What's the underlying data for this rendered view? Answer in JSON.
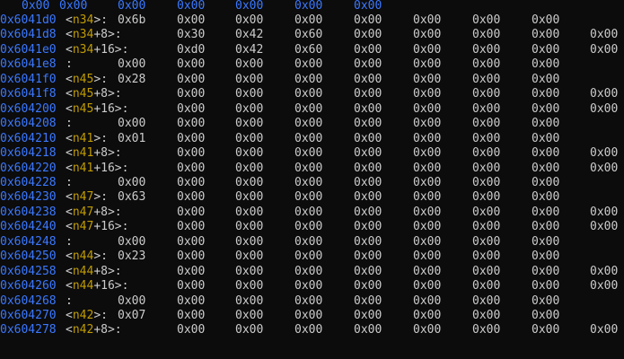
{
  "colors": {
    "background": "#0c0c0c",
    "address": "#3b78ff",
    "symbol": "#c19c00",
    "value": "#cccccc"
  },
  "header": [
    "0x00",
    "0x00",
    "0x00",
    "0x00",
    "0x00",
    "0x00",
    "0x00"
  ],
  "rows": [
    {
      "address": "0x6041d0",
      "symbol": "n34",
      "suffix": ">:",
      "values": [
        "0x6b",
        "0x00",
        "0x00",
        "0x00",
        "0x00",
        "0x00",
        "0x00",
        "0x00"
      ]
    },
    {
      "address": "0x6041d8",
      "symbol": "n34",
      "suffix": "+8>:",
      "values": [
        "",
        "0x30",
        "0x42",
        "0x60",
        "0x00",
        "0x00",
        "0x00",
        "0x00",
        "0x00"
      ]
    },
    {
      "address": "0x6041e0",
      "symbol": "n34",
      "suffix": "+16>:",
      "values": [
        "",
        "0xd0",
        "0x42",
        "0x60",
        "0x00",
        "0x00",
        "0x00",
        "0x00",
        "0x00"
      ]
    },
    {
      "address": "0x6041e8",
      "symbol": "",
      "suffix": ":",
      "values": [
        "0x00",
        "0x00",
        "0x00",
        "0x00",
        "0x00",
        "0x00",
        "0x00",
        "0x00"
      ]
    },
    {
      "address": "0x6041f0",
      "symbol": "n45",
      "suffix": ">:",
      "values": [
        "0x28",
        "0x00",
        "0x00",
        "0x00",
        "0x00",
        "0x00",
        "0x00",
        "0x00"
      ]
    },
    {
      "address": "0x6041f8",
      "symbol": "n45",
      "suffix": "+8>:",
      "values": [
        "",
        "0x00",
        "0x00",
        "0x00",
        "0x00",
        "0x00",
        "0x00",
        "0x00",
        "0x00"
      ]
    },
    {
      "address": "0x604200",
      "symbol": "n45",
      "suffix": "+16>:",
      "values": [
        "",
        "0x00",
        "0x00",
        "0x00",
        "0x00",
        "0x00",
        "0x00",
        "0x00",
        "0x00"
      ]
    },
    {
      "address": "0x604208",
      "symbol": "",
      "suffix": ":",
      "values": [
        "0x00",
        "0x00",
        "0x00",
        "0x00",
        "0x00",
        "0x00",
        "0x00",
        "0x00"
      ]
    },
    {
      "address": "0x604210",
      "symbol": "n41",
      "suffix": ">:",
      "values": [
        "0x01",
        "0x00",
        "0x00",
        "0x00",
        "0x00",
        "0x00",
        "0x00",
        "0x00"
      ]
    },
    {
      "address": "0x604218",
      "symbol": "n41",
      "suffix": "+8>:",
      "values": [
        "",
        "0x00",
        "0x00",
        "0x00",
        "0x00",
        "0x00",
        "0x00",
        "0x00",
        "0x00"
      ]
    },
    {
      "address": "0x604220",
      "symbol": "n41",
      "suffix": "+16>:",
      "values": [
        "",
        "0x00",
        "0x00",
        "0x00",
        "0x00",
        "0x00",
        "0x00",
        "0x00",
        "0x00"
      ]
    },
    {
      "address": "0x604228",
      "symbol": "",
      "suffix": ":",
      "values": [
        "0x00",
        "0x00",
        "0x00",
        "0x00",
        "0x00",
        "0x00",
        "0x00",
        "0x00"
      ]
    },
    {
      "address": "0x604230",
      "symbol": "n47",
      "suffix": ">:",
      "values": [
        "0x63",
        "0x00",
        "0x00",
        "0x00",
        "0x00",
        "0x00",
        "0x00",
        "0x00"
      ]
    },
    {
      "address": "0x604238",
      "symbol": "n47",
      "suffix": "+8>:",
      "values": [
        "",
        "0x00",
        "0x00",
        "0x00",
        "0x00",
        "0x00",
        "0x00",
        "0x00",
        "0x00"
      ]
    },
    {
      "address": "0x604240",
      "symbol": "n47",
      "suffix": "+16>:",
      "values": [
        "",
        "0x00",
        "0x00",
        "0x00",
        "0x00",
        "0x00",
        "0x00",
        "0x00",
        "0x00"
      ]
    },
    {
      "address": "0x604248",
      "symbol": "",
      "suffix": ":",
      "values": [
        "0x00",
        "0x00",
        "0x00",
        "0x00",
        "0x00",
        "0x00",
        "0x00",
        "0x00"
      ]
    },
    {
      "address": "0x604250",
      "symbol": "n44",
      "suffix": ">:",
      "values": [
        "0x23",
        "0x00",
        "0x00",
        "0x00",
        "0x00",
        "0x00",
        "0x00",
        "0x00"
      ]
    },
    {
      "address": "0x604258",
      "symbol": "n44",
      "suffix": "+8>:",
      "values": [
        "",
        "0x00",
        "0x00",
        "0x00",
        "0x00",
        "0x00",
        "0x00",
        "0x00",
        "0x00"
      ]
    },
    {
      "address": "0x604260",
      "symbol": "n44",
      "suffix": "+16>:",
      "values": [
        "",
        "0x00",
        "0x00",
        "0x00",
        "0x00",
        "0x00",
        "0x00",
        "0x00",
        "0x00"
      ]
    },
    {
      "address": "0x604268",
      "symbol": "",
      "suffix": ":",
      "values": [
        "0x00",
        "0x00",
        "0x00",
        "0x00",
        "0x00",
        "0x00",
        "0x00",
        "0x00"
      ]
    },
    {
      "address": "0x604270",
      "symbol": "n42",
      "suffix": ">:",
      "values": [
        "0x07",
        "0x00",
        "0x00",
        "0x00",
        "0x00",
        "0x00",
        "0x00",
        "0x00"
      ]
    },
    {
      "address": "0x604278",
      "symbol": "n42",
      "suffix": "+8>:",
      "values": [
        "",
        "0x00",
        "0x00",
        "0x00",
        "0x00",
        "0x00",
        "0x00",
        "0x00",
        "0x00"
      ]
    }
  ]
}
